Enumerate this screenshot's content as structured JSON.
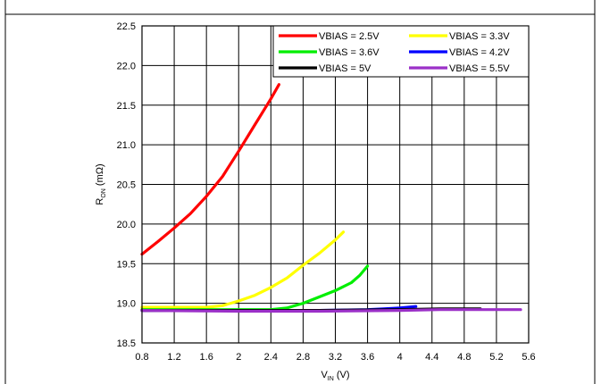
{
  "chart_data": {
    "type": "line",
    "title": "",
    "xlabel": {
      "main": "V",
      "sub": "IN",
      "unit": " (V)"
    },
    "ylabel": {
      "main": "R",
      "sub": "ON",
      "unit": " (mΩ)"
    },
    "xlim": [
      0.8,
      5.6
    ],
    "ylim": [
      18.5,
      22.5
    ],
    "x_ticks": [
      "0.8",
      "1.2",
      "1.6",
      "2",
      "2.4",
      "2.8",
      "3.2",
      "3.6",
      "4",
      "4.4",
      "4.8",
      "5.2",
      "5.6"
    ],
    "y_ticks": [
      "18.5",
      "19.0",
      "19.5",
      "20.0",
      "20.5",
      "21.0",
      "21.5",
      "22.0",
      "22.5"
    ],
    "grid": true,
    "legend_position": "top-right",
    "series": [
      {
        "name": "VBIAS = 2.5V",
        "color": "#ff0000",
        "points": [
          [
            0.8,
            19.62
          ],
          [
            1.0,
            19.78
          ],
          [
            1.2,
            19.95
          ],
          [
            1.4,
            20.13
          ],
          [
            1.6,
            20.35
          ],
          [
            1.8,
            20.6
          ],
          [
            2.0,
            20.92
          ],
          [
            2.2,
            21.25
          ],
          [
            2.4,
            21.58
          ],
          [
            2.5,
            21.76
          ]
        ]
      },
      {
        "name": "VBIAS = 3.3V",
        "color": "#ffff00",
        "points": [
          [
            0.8,
            18.95
          ],
          [
            1.2,
            18.95
          ],
          [
            1.6,
            18.95
          ],
          [
            1.8,
            18.97
          ],
          [
            2.0,
            19.03
          ],
          [
            2.2,
            19.1
          ],
          [
            2.4,
            19.2
          ],
          [
            2.6,
            19.32
          ],
          [
            2.8,
            19.48
          ],
          [
            3.0,
            19.63
          ],
          [
            3.2,
            19.8
          ],
          [
            3.3,
            19.9
          ]
        ]
      },
      {
        "name": "VBIAS = 3.6V",
        "color": "#00ee00",
        "points": [
          [
            0.8,
            18.92
          ],
          [
            1.6,
            18.92
          ],
          [
            2.4,
            18.92
          ],
          [
            2.6,
            18.94
          ],
          [
            2.8,
            19.0
          ],
          [
            3.0,
            19.08
          ],
          [
            3.2,
            19.16
          ],
          [
            3.4,
            19.26
          ],
          [
            3.5,
            19.35
          ],
          [
            3.6,
            19.47
          ]
        ]
      },
      {
        "name": "VBIAS = 4.2V",
        "color": "#0000ff",
        "points": [
          [
            0.8,
            18.91
          ],
          [
            2.0,
            18.91
          ],
          [
            3.0,
            18.91
          ],
          [
            3.6,
            18.92
          ],
          [
            3.8,
            18.93
          ],
          [
            4.0,
            18.94
          ],
          [
            4.2,
            18.96
          ]
        ]
      },
      {
        "name": "VBIAS = 5V",
        "color": "#000000",
        "points": [
          [
            0.8,
            18.91
          ],
          [
            2.0,
            18.91
          ],
          [
            3.0,
            18.91
          ],
          [
            4.0,
            18.92
          ],
          [
            4.5,
            18.93
          ],
          [
            5.0,
            18.93
          ]
        ]
      },
      {
        "name": "VBIAS = 5.5V",
        "color": "#9b30c8",
        "points": [
          [
            0.8,
            18.91
          ],
          [
            2.0,
            18.9
          ],
          [
            3.0,
            18.9
          ],
          [
            4.0,
            18.91
          ],
          [
            4.5,
            18.92
          ],
          [
            5.0,
            18.92
          ],
          [
            5.5,
            18.92
          ]
        ]
      }
    ]
  }
}
